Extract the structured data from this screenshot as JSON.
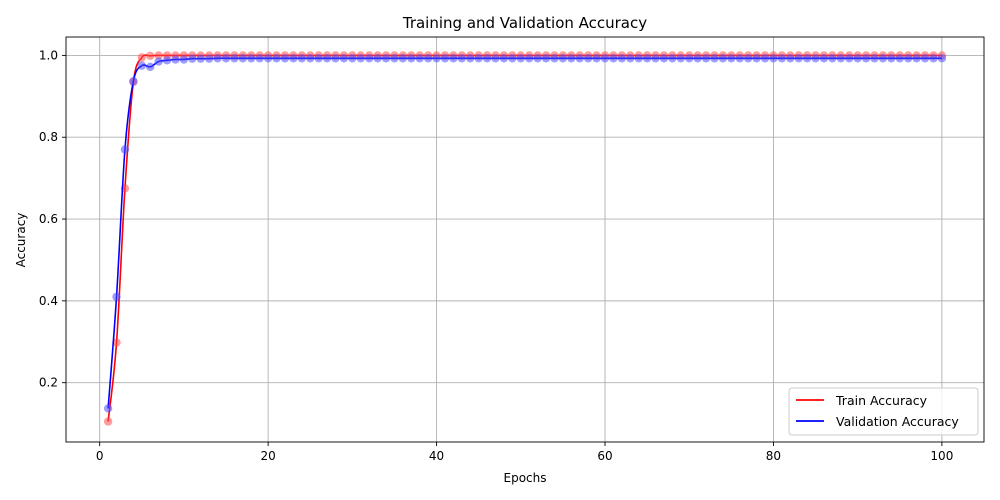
{
  "chart_data": {
    "type": "line",
    "title": "Training and Validation Accuracy",
    "xlabel": "Epochs",
    "ylabel": "Accuracy",
    "xlim": [
      -4,
      105
    ],
    "ylim": [
      0.055,
      1.045
    ],
    "xticks": [
      0,
      20,
      40,
      60,
      80,
      100
    ],
    "yticks": [
      0.2,
      0.4,
      0.6,
      0.8,
      1.0
    ],
    "xtick_labels": [
      "0",
      "20",
      "40",
      "60",
      "80",
      "100"
    ],
    "ytick_labels": [
      "0.2",
      "0.4",
      "0.6",
      "0.8",
      "1.0"
    ],
    "grid": true,
    "legend_position": "bottom-right",
    "epochs_start": 1,
    "epochs_end": 100,
    "series": [
      {
        "name": "Train Accuracy",
        "color": "#ff0000",
        "marker_color": "#ff4d4d",
        "values": [
          0.105,
          0.298,
          0.675,
          0.935,
          0.995,
          0.999,
          1.0,
          1.0,
          1.0,
          1.0,
          1.0,
          1.0,
          1.0,
          1.0,
          1.0,
          1.0,
          1.0,
          1.0,
          1.0,
          1.0,
          1.0,
          1.0,
          1.0,
          1.0,
          1.0,
          1.0,
          1.0,
          1.0,
          1.0,
          1.0,
          1.0,
          1.0,
          1.0,
          1.0,
          1.0,
          1.0,
          1.0,
          1.0,
          1.0,
          1.0,
          1.0,
          1.0,
          1.0,
          1.0,
          1.0,
          1.0,
          1.0,
          1.0,
          1.0,
          1.0,
          1.0,
          1.0,
          1.0,
          1.0,
          1.0,
          1.0,
          1.0,
          1.0,
          1.0,
          1.0,
          1.0,
          1.0,
          1.0,
          1.0,
          1.0,
          1.0,
          1.0,
          1.0,
          1.0,
          1.0,
          1.0,
          1.0,
          1.0,
          1.0,
          1.0,
          1.0,
          1.0,
          1.0,
          1.0,
          1.0,
          1.0,
          1.0,
          1.0,
          1.0,
          1.0,
          1.0,
          1.0,
          1.0,
          1.0,
          1.0,
          1.0,
          1.0,
          1.0,
          1.0,
          1.0,
          1.0,
          1.0,
          1.0,
          1.0,
          1.0
        ]
      },
      {
        "name": "Validation Accuracy",
        "color": "#0000ff",
        "marker_color": "#4d4dff",
        "values": [
          0.137,
          0.41,
          0.77,
          0.937,
          0.975,
          0.972,
          0.985,
          0.988,
          0.99,
          0.99,
          0.992,
          0.992,
          0.992,
          0.993,
          0.993,
          0.993,
          0.993,
          0.993,
          0.993,
          0.993,
          0.993,
          0.993,
          0.993,
          0.993,
          0.993,
          0.993,
          0.993,
          0.993,
          0.993,
          0.993,
          0.993,
          0.993,
          0.993,
          0.993,
          0.993,
          0.993,
          0.993,
          0.993,
          0.993,
          0.993,
          0.993,
          0.993,
          0.993,
          0.993,
          0.993,
          0.993,
          0.993,
          0.993,
          0.993,
          0.993,
          0.993,
          0.993,
          0.993,
          0.993,
          0.993,
          0.993,
          0.993,
          0.993,
          0.993,
          0.993,
          0.993,
          0.993,
          0.993,
          0.993,
          0.993,
          0.993,
          0.993,
          0.993,
          0.993,
          0.993,
          0.993,
          0.993,
          0.993,
          0.993,
          0.993,
          0.993,
          0.993,
          0.993,
          0.993,
          0.993,
          0.993,
          0.993,
          0.993,
          0.993,
          0.993,
          0.993,
          0.993,
          0.993,
          0.993,
          0.993,
          0.993,
          0.993,
          0.993,
          0.993,
          0.993,
          0.993,
          0.993,
          0.993,
          0.993,
          0.993
        ]
      }
    ]
  }
}
